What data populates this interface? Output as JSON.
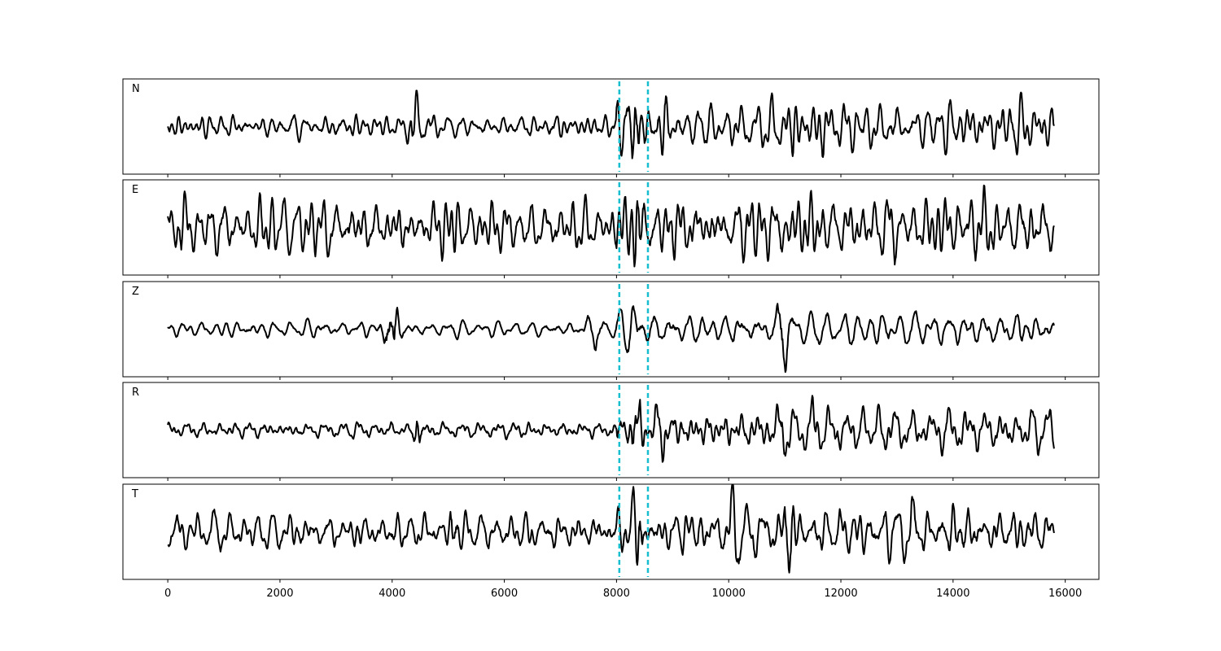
{
  "chart_data": {
    "type": "line",
    "xlim": [
      -800,
      16600
    ],
    "x_ticks": [
      0,
      2000,
      4000,
      6000,
      8000,
      10000,
      12000,
      14000,
      16000
    ],
    "x_tick_labels": [
      "0",
      "2000",
      "4000",
      "6000",
      "8000",
      "10000",
      "12000",
      "14000",
      "16000"
    ],
    "y_ticks_shown": false,
    "grid": false,
    "n_samples": 15800,
    "markers": {
      "color": "#17becf",
      "style": "dashed",
      "x": [
        8050,
        8560
      ]
    },
    "panels": [
      {
        "label": "N",
        "ylim": [
          -1.0,
          1.0
        ],
        "bursts": [
          {
            "at": 4400,
            "amp": 0.45
          },
          {
            "at": 8300,
            "amp": 0.95
          },
          {
            "at": 8800,
            "amp": 0.75
          },
          {
            "at": 11200,
            "amp": 0.55
          },
          {
            "at": 11700,
            "amp": 0.6
          }
        ],
        "base_amp": 0.18,
        "late_amp": 0.38
      },
      {
        "label": "E",
        "ylim": [
          -1.0,
          1.0
        ],
        "bursts": [
          {
            "at": 280,
            "amp": 0.65
          },
          {
            "at": 5100,
            "amp": 0.6
          },
          {
            "at": 8350,
            "amp": 0.95
          },
          {
            "at": 9400,
            "amp": 0.7
          },
          {
            "at": 10950,
            "amp": 0.85
          },
          {
            "at": 12900,
            "amp": 0.7
          }
        ],
        "base_amp": 0.42,
        "late_amp": 0.5
      },
      {
        "label": "Z",
        "ylim": [
          -1.0,
          1.0
        ],
        "bursts": [
          {
            "at": 4000,
            "amp": 0.95
          },
          {
            "at": 7600,
            "amp": 0.45
          },
          {
            "at": 8300,
            "amp": 0.5
          },
          {
            "at": 10980,
            "amp": 0.85
          },
          {
            "at": 13300,
            "amp": 0.38
          }
        ],
        "base_amp": 0.12,
        "late_amp": 0.25
      },
      {
        "label": "R",
        "ylim": [
          -1.0,
          1.0
        ],
        "bursts": [
          {
            "at": 4450,
            "amp": 0.4
          },
          {
            "at": 8350,
            "amp": 0.9
          },
          {
            "at": 8800,
            "amp": 0.75
          },
          {
            "at": 10950,
            "amp": 0.65
          },
          {
            "at": 11500,
            "amp": 0.6
          }
        ],
        "base_amp": 0.14,
        "late_amp": 0.35
      },
      {
        "label": "T",
        "ylim": [
          -1.0,
          1.0
        ],
        "bursts": [
          {
            "at": 0,
            "amp": 0.5
          },
          {
            "at": 5100,
            "amp": 0.7
          },
          {
            "at": 8350,
            "amp": 0.9
          },
          {
            "at": 10100,
            "amp": 0.75
          },
          {
            "at": 11050,
            "amp": 0.9
          },
          {
            "at": 13250,
            "amp": 0.7
          }
        ],
        "base_amp": 0.3,
        "late_amp": 0.42
      }
    ]
  }
}
